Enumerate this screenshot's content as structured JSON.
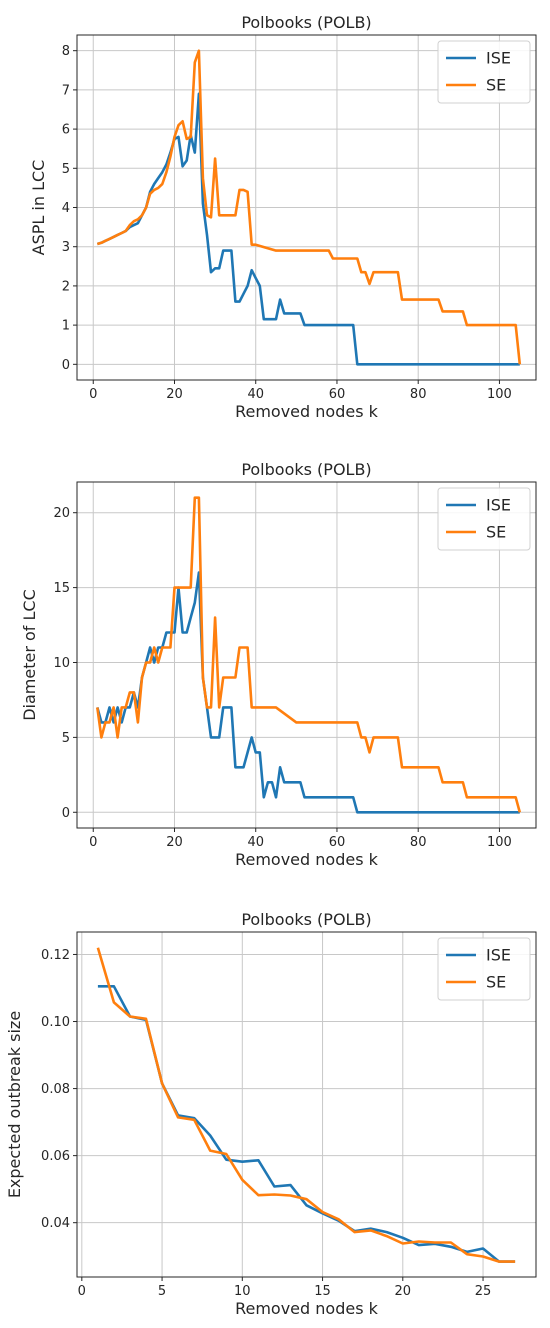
{
  "colors": {
    "ise": "#1f77b4",
    "se": "#ff7f0e"
  },
  "chart_data": [
    {
      "type": "line",
      "title": "Polbooks (POLB)",
      "xlabel": "Removed nodes k",
      "ylabel": "ASPL in LCC",
      "xlim": [
        -4,
        109
      ],
      "ylim": [
        -0.4,
        8.4
      ],
      "xticks": [
        0,
        20,
        40,
        60,
        80,
        100
      ],
      "yticks": [
        0,
        1,
        2,
        3,
        4,
        5,
        6,
        7,
        8
      ],
      "legend": "top-right",
      "grid": true,
      "series": [
        {
          "name": "ISE",
          "color": "#1f77b4",
          "x": [
            1,
            2,
            3,
            4,
            5,
            6,
            7,
            8,
            9,
            10,
            11,
            12,
            13,
            14,
            15,
            16,
            17,
            18,
            19,
            20,
            21,
            22,
            23,
            24,
            25,
            26,
            27,
            28,
            29,
            30,
            31,
            32,
            33,
            34,
            35,
            36,
            37,
            38,
            39,
            40,
            41,
            42,
            43,
            44,
            45,
            46,
            47,
            48,
            49,
            50,
            51,
            52,
            53,
            55,
            60,
            64,
            65,
            70,
            80,
            90,
            100,
            104,
            105
          ],
          "y": [
            3.07,
            3.1,
            3.15,
            3.2,
            3.25,
            3.3,
            3.35,
            3.4,
            3.5,
            3.55,
            3.6,
            3.8,
            4.0,
            4.4,
            4.6,
            4.75,
            4.9,
            5.1,
            5.4,
            5.75,
            5.8,
            5.05,
            5.2,
            5.85,
            5.4,
            6.9,
            4.1,
            3.3,
            2.35,
            2.45,
            2.45,
            2.9,
            2.9,
            2.9,
            1.6,
            1.6,
            1.8,
            2.0,
            2.4,
            2.2,
            2.0,
            1.15,
            1.15,
            1.15,
            1.15,
            1.65,
            1.3,
            1.3,
            1.3,
            1.3,
            1.3,
            1.0,
            1.0,
            1.0,
            1.0,
            1.0,
            0,
            0,
            0,
            0,
            0,
            0,
            0
          ]
        },
        {
          "name": "SE",
          "color": "#ff7f0e",
          "x": [
            1,
            2,
            3,
            4,
            5,
            6,
            7,
            8,
            9,
            10,
            11,
            12,
            13,
            14,
            15,
            16,
            17,
            18,
            19,
            20,
            21,
            22,
            23,
            24,
            25,
            26,
            27,
            28,
            29,
            30,
            31,
            32,
            33,
            34,
            35,
            36,
            37,
            38,
            39,
            40,
            45,
            50,
            55,
            58,
            59,
            62,
            63,
            65,
            66,
            67,
            68,
            69,
            70,
            72,
            75,
            76,
            80,
            85,
            86,
            90,
            91,
            92,
            95,
            100,
            104,
            105
          ],
          "y": [
            3.07,
            3.1,
            3.15,
            3.2,
            3.25,
            3.3,
            3.35,
            3.4,
            3.55,
            3.65,
            3.7,
            3.8,
            4.0,
            4.35,
            4.45,
            4.5,
            4.6,
            4.9,
            5.3,
            5.8,
            6.1,
            6.2,
            5.75,
            5.8,
            7.7,
            8.0,
            4.75,
            3.8,
            3.75,
            5.25,
            3.8,
            3.8,
            3.8,
            3.8,
            3.8,
            4.45,
            4.45,
            4.4,
            3.05,
            3.05,
            2.9,
            2.9,
            2.9,
            2.9,
            2.7,
            2.7,
            2.7,
            2.7,
            2.35,
            2.35,
            2.05,
            2.35,
            2.35,
            2.35,
            2.35,
            1.65,
            1.65,
            1.65,
            1.35,
            1.35,
            1.35,
            1.0,
            1.0,
            1.0,
            1.0,
            0
          ]
        }
      ]
    },
    {
      "type": "line",
      "title": "Polbooks (POLB)",
      "xlabel": "Removed nodes k",
      "ylabel": "Diameter of LCC",
      "xlim": [
        -4,
        109
      ],
      "ylim": [
        -1.05,
        22.05
      ],
      "xticks": [
        0,
        20,
        40,
        60,
        80,
        100
      ],
      "yticks": [
        0,
        5,
        10,
        15,
        20
      ],
      "legend": "top-right",
      "grid": true,
      "series": [
        {
          "name": "ISE",
          "color": "#1f77b4",
          "x": [
            1,
            2,
            3,
            4,
            5,
            6,
            7,
            8,
            9,
            10,
            11,
            12,
            13,
            14,
            15,
            16,
            17,
            18,
            19,
            20,
            21,
            22,
            23,
            24,
            25,
            26,
            27,
            28,
            29,
            30,
            31,
            32,
            33,
            34,
            35,
            36,
            37,
            38,
            39,
            40,
            41,
            42,
            43,
            44,
            45,
            46,
            47,
            48,
            49,
            50,
            51,
            52,
            53,
            55,
            60,
            64,
            65,
            70,
            80,
            90,
            100,
            104,
            105
          ],
          "y": [
            7,
            6,
            6,
            7,
            6,
            7,
            6,
            7,
            7,
            8,
            7,
            9,
            10,
            11,
            10,
            11,
            11,
            12,
            12,
            12,
            15,
            12,
            12,
            13,
            14,
            16,
            9,
            7,
            5,
            5,
            5,
            7,
            7,
            7,
            3,
            3,
            3,
            4,
            5,
            4,
            4,
            1,
            2,
            2,
            1,
            3,
            2,
            2,
            2,
            2,
            2,
            1,
            1,
            1,
            1,
            1,
            0,
            0,
            0,
            0,
            0,
            0,
            0
          ]
        },
        {
          "name": "SE",
          "color": "#ff7f0e",
          "x": [
            1,
            2,
            3,
            4,
            5,
            6,
            7,
            8,
            9,
            10,
            11,
            12,
            13,
            14,
            15,
            16,
            17,
            18,
            19,
            20,
            21,
            22,
            23,
            24,
            25,
            26,
            27,
            28,
            29,
            30,
            31,
            32,
            33,
            34,
            35,
            36,
            37,
            38,
            39,
            40,
            45,
            50,
            55,
            58,
            59,
            62,
            63,
            65,
            66,
            67,
            68,
            69,
            70,
            72,
            75,
            76,
            80,
            85,
            86,
            90,
            91,
            92,
            95,
            100,
            104,
            105
          ],
          "y": [
            7,
            5,
            6,
            6,
            7,
            5,
            7,
            7,
            8,
            8,
            6,
            9,
            10,
            10,
            11,
            10,
            11,
            11,
            11,
            15,
            15,
            15,
            15,
            15,
            21,
            21,
            9,
            7,
            7,
            13,
            7,
            9,
            9,
            9,
            9,
            11,
            11,
            11,
            7,
            7,
            7,
            6,
            6,
            6,
            6,
            6,
            6,
            6,
            5,
            5,
            4,
            5,
            5,
            5,
            5,
            3,
            3,
            3,
            2,
            2,
            2,
            1,
            1,
            1,
            1,
            0
          ]
        }
      ]
    },
    {
      "type": "line",
      "title": "Polbooks (POLB)",
      "xlabel": "Removed nodes k",
      "ylabel": "Expected outbreak size",
      "xlim": [
        -0.3,
        28.3
      ],
      "ylim": [
        0.0238,
        0.1267
      ],
      "xticks": [
        0,
        5,
        10,
        15,
        20,
        25
      ],
      "yticks": [
        0.04,
        0.06,
        0.08,
        0.1,
        0.12
      ],
      "legend": "top-right",
      "grid": true,
      "series": [
        {
          "name": "ISE",
          "color": "#1f77b4",
          "x": [
            1,
            2,
            3,
            4,
            5,
            6,
            7,
            8,
            9,
            10,
            11,
            12,
            13,
            14,
            15,
            16,
            17,
            18,
            19,
            20,
            21,
            22,
            23,
            24,
            25,
            26,
            27
          ],
          "y": [
            0.1105,
            0.1105,
            0.1015,
            0.1005,
            0.0815,
            0.072,
            0.0712,
            0.066,
            0.0588,
            0.0582,
            0.0586,
            0.0508,
            0.0512,
            0.0452,
            0.0428,
            0.0406,
            0.0375,
            0.0382,
            0.0372,
            0.0355,
            0.0333,
            0.0337,
            0.0328,
            0.0313,
            0.0323,
            0.0284,
            0.0284
          ]
        },
        {
          "name": "SE",
          "color": "#ff7f0e",
          "x": [
            1,
            2,
            3,
            4,
            5,
            6,
            7,
            8,
            9,
            10,
            11,
            12,
            13,
            14,
            15,
            16,
            17,
            18,
            19,
            20,
            21,
            22,
            23,
            24,
            25,
            26,
            27
          ],
          "y": [
            0.122,
            0.1057,
            0.1015,
            0.1008,
            0.0815,
            0.0714,
            0.0707,
            0.0615,
            0.0605,
            0.0528,
            0.0482,
            0.0484,
            0.0481,
            0.047,
            0.0432,
            0.041,
            0.0372,
            0.0377,
            0.036,
            0.0338,
            0.0344,
            0.0341,
            0.0341,
            0.0306,
            0.0299,
            0.0284,
            0.0284
          ]
        }
      ]
    }
  ]
}
